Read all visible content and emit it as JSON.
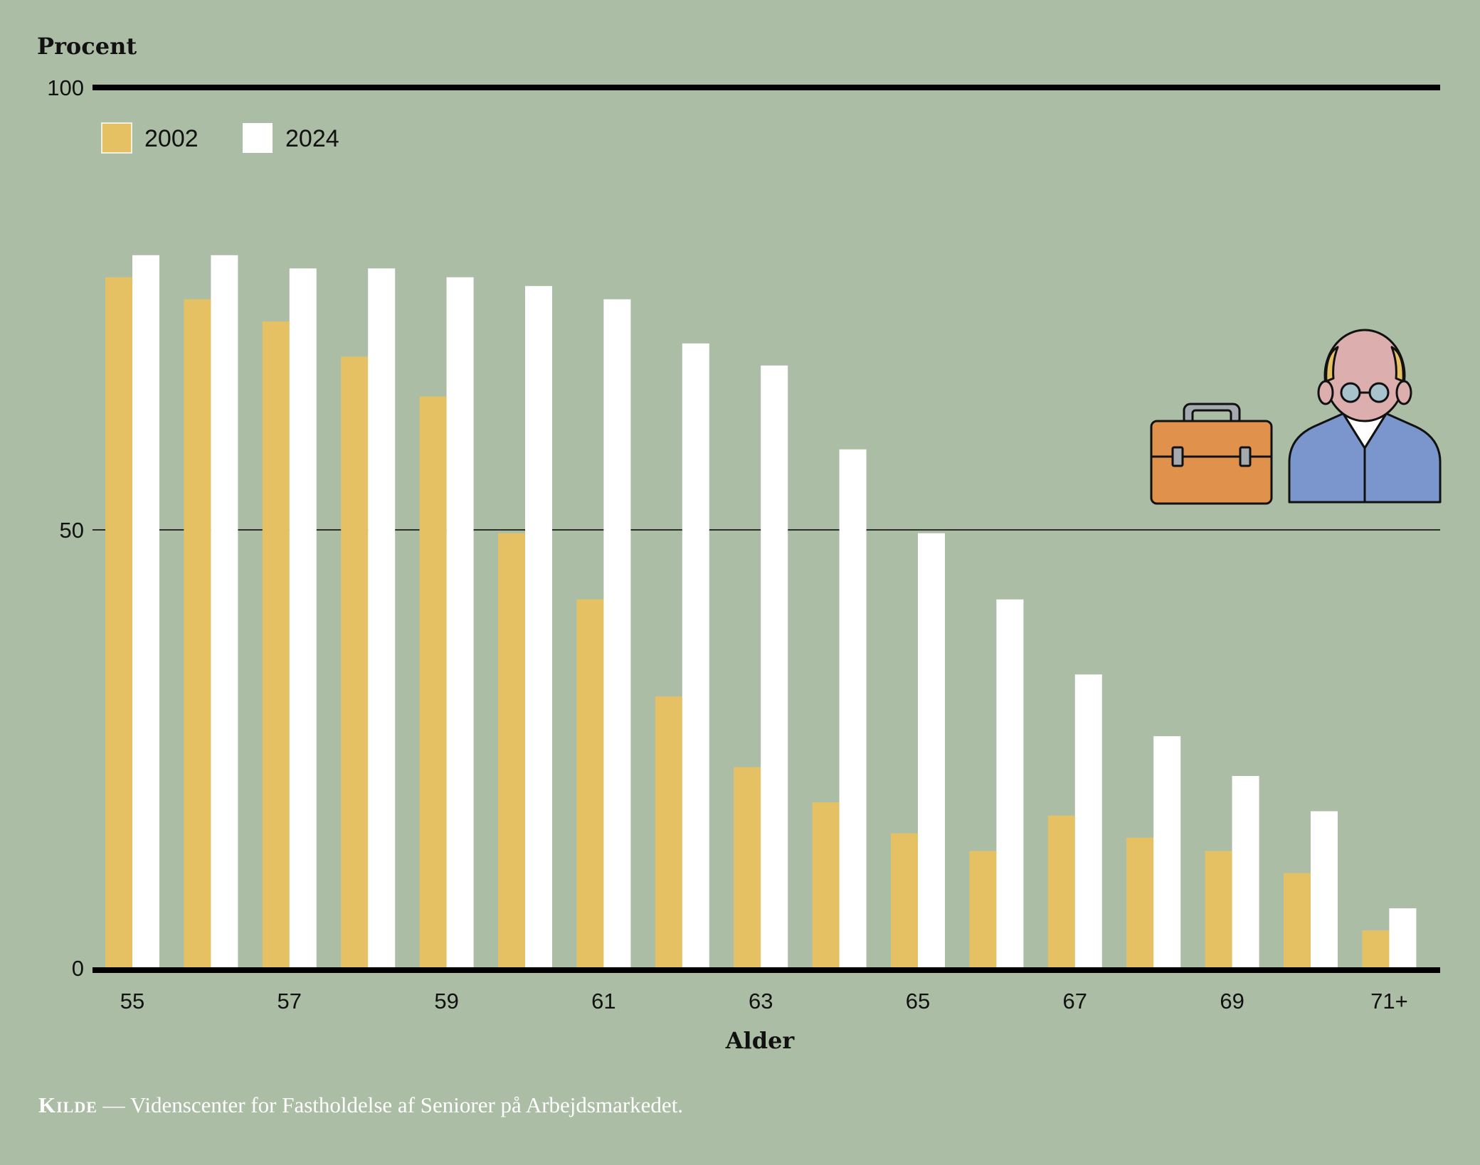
{
  "chart_data": {
    "type": "bar",
    "ylabel": "Procent",
    "xlabel": "Alder",
    "ylim": [
      0,
      100
    ],
    "yticks": [
      "0",
      "50",
      "100"
    ],
    "grid": "horizontal at 50; heavy rules at 0 and 100",
    "legend_position": "top-left",
    "categories": [
      "55",
      "56",
      "57",
      "58",
      "59",
      "60",
      "61",
      "62",
      "63",
      "64",
      "65",
      "66",
      "67",
      "68",
      "69",
      "70",
      "71+"
    ],
    "xtick_labels": [
      "55",
      "57",
      "59",
      "61",
      "63",
      "65",
      "67",
      "69",
      "71+"
    ],
    "series": [
      {
        "name": "2002",
        "color": "#e5c163",
        "values": [
          78.5,
          76,
          73.5,
          69.5,
          65,
          49.5,
          42,
          31,
          23,
          19,
          15.5,
          13.5,
          17.5,
          15,
          13.5,
          11,
          4.5
        ]
      },
      {
        "name": "2024",
        "color": "#ffffff",
        "values": [
          81,
          81,
          79.5,
          79.5,
          78.5,
          77.5,
          76,
          71,
          68.5,
          59,
          49.5,
          42,
          33.5,
          26.5,
          22,
          18,
          7
        ]
      }
    ]
  },
  "source": {
    "label": "Kilde",
    "dash": "—",
    "text": "Videnscenter for Fastholdelse af Seniorer på Arbejdsmarkedet."
  },
  "icons": [
    "briefcase-icon",
    "senior-worker-icon"
  ]
}
